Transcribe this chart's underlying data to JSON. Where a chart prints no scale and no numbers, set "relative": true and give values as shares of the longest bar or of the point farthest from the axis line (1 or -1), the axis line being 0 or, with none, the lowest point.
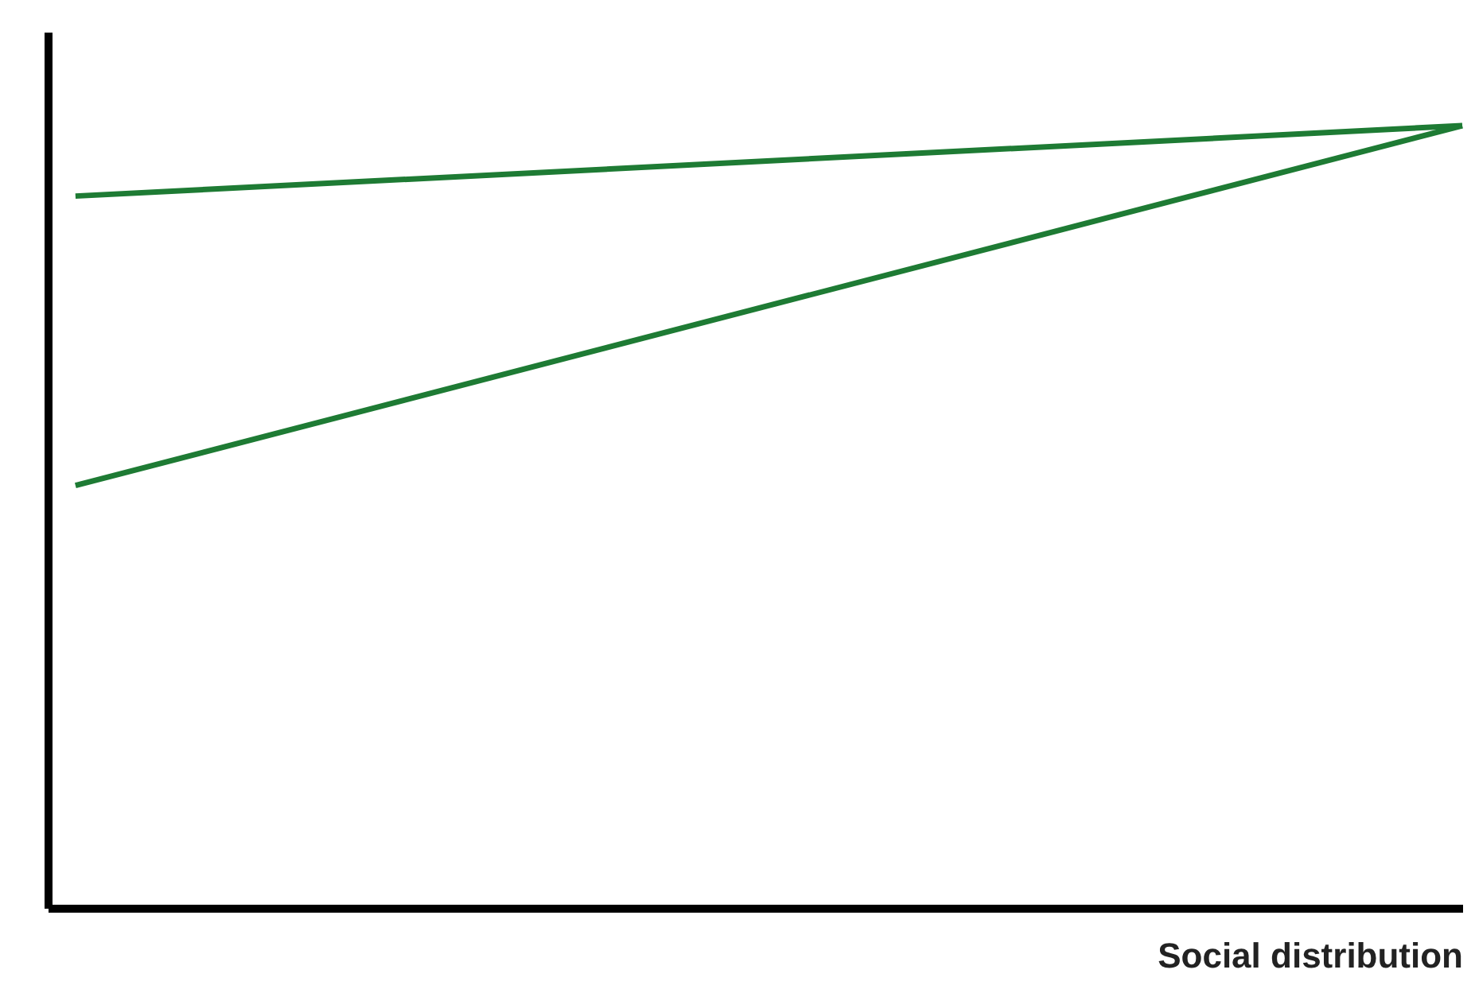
{
  "chart_data": {
    "type": "line",
    "relative": true,
    "xlabel": "Social distribution",
    "categories": [
      null,
      null
    ],
    "series": [
      {
        "color": "#1e7b34",
        "values": [
          0.91,
          1
        ]
      },
      {
        "color": "#1e7b34",
        "values": [
          0.54,
          1
        ]
      }
    ],
    "grid": false,
    "marker": "none",
    "line_style": "solid"
  }
}
